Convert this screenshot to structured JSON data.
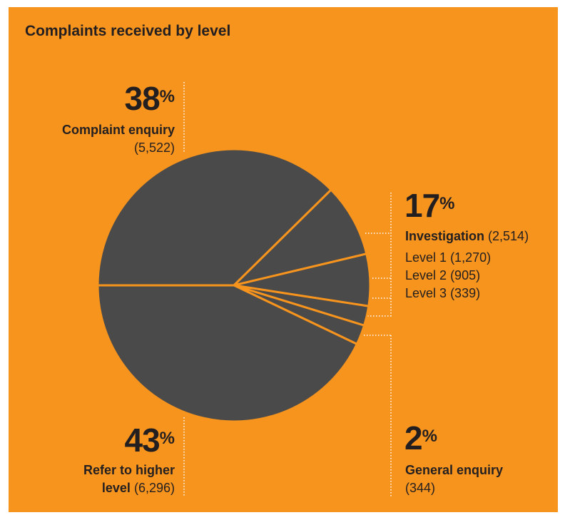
{
  "chart_data": {
    "type": "pie",
    "title": "Complaints received by level",
    "unit": "%",
    "color": "#4a4a4a",
    "edge_color": "#f7941d",
    "categories": [
      "Complaint enquiry",
      "Level 1",
      "Level 2",
      "Level 3",
      "General enquiry",
      "Refer to higher level"
    ],
    "values": [
      5522,
      1270,
      905,
      339,
      344,
      6296
    ],
    "value_labels": [
      "(5,522)",
      "(1,270)",
      "(905)",
      "(339)",
      "(344)",
      "(6,296)"
    ],
    "percents": [
      38,
      null,
      null,
      null,
      2,
      43
    ],
    "investigation": {
      "name": "Investigation",
      "value": 2514,
      "value_label": "(2,514)",
      "percent": 17
    }
  }
}
